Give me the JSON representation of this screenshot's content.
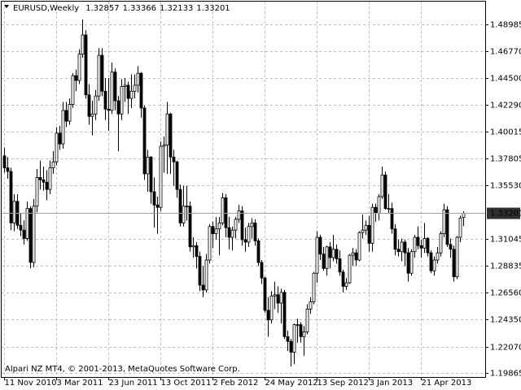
{
  "chart_data": {
    "type": "candlestick",
    "symbol": "EURUSD,Weekly",
    "footer": "Alpari NZ MT4, © 2001-2013, MetaQuotes Software Corp.",
    "bull_color": "#ffffff",
    "bear_color": "#000000",
    "grid": true,
    "ylim": [
      1.1953,
      1.5102
    ],
    "yticks": [
      1.48985,
      {
        "value": 1.4677,
        "label": "1.46770"
      },
      {
        "value": 1.445,
        "label": "1.44500"
      },
      {
        "value": 1.4229,
        "label": "1.42290"
      },
      1.40015,
      1.37805,
      {
        "value": 1.3553,
        "label": "1.35530"
      },
      1.31045,
      1.28835,
      {
        "value": 1.2656,
        "label": "1.26560"
      },
      {
        "value": 1.2435,
        "label": "1.24350"
      },
      {
        "value": 1.2207,
        "label": "1.22070"
      },
      1.19865
    ],
    "categories": [
      "11 Nov 2010",
      null,
      null,
      null,
      null,
      null,
      null,
      null,
      null,
      null,
      null,
      null,
      null,
      null,
      null,
      null,
      "3 Mar 2011",
      null,
      null,
      null,
      null,
      null,
      null,
      null,
      null,
      null,
      null,
      null,
      null,
      null,
      null,
      null,
      "23 Jun 2011",
      null,
      null,
      null,
      null,
      null,
      null,
      null,
      null,
      null,
      null,
      null,
      null,
      null,
      null,
      null,
      "13 Oct 2011",
      null,
      null,
      null,
      null,
      null,
      null,
      null,
      null,
      null,
      null,
      null,
      null,
      null,
      null,
      null,
      "2 Feb 2012",
      null,
      null,
      null,
      null,
      null,
      null,
      null,
      null,
      null,
      null,
      null,
      null,
      null,
      null,
      null,
      "24 May 2012",
      null,
      null,
      null,
      null,
      null,
      null,
      null,
      null,
      null,
      null,
      null,
      null,
      null,
      null,
      null,
      "13 Sep 2012",
      null,
      null,
      null,
      null,
      null,
      null,
      null,
      null,
      null,
      null,
      null,
      null,
      null,
      null,
      null,
      "3 Jan 2013",
      null,
      null,
      null,
      null,
      null,
      null,
      null,
      null,
      null,
      null,
      null,
      null,
      null,
      null,
      null,
      "21 Apr 2013",
      null,
      null,
      null,
      null,
      null,
      null,
      null,
      null,
      null,
      null,
      null,
      null,
      null
    ],
    "ohlc": [
      [
        1.38,
        1.387,
        1.366,
        1.37
      ],
      [
        1.37,
        1.379,
        1.361,
        1.367
      ],
      [
        1.367,
        1.37,
        1.318,
        1.324
      ],
      [
        1.324,
        1.348,
        1.317,
        1.342
      ],
      [
        1.342,
        1.348,
        1.319,
        1.322
      ],
      [
        1.322,
        1.332,
        1.313,
        1.318
      ],
      [
        1.318,
        1.326,
        1.306,
        1.311
      ],
      [
        1.311,
        1.342,
        1.309,
        1.336
      ],
      [
        1.336,
        1.338,
        1.286,
        1.291
      ],
      [
        1.291,
        1.344,
        1.287,
        1.338
      ],
      [
        1.338,
        1.369,
        1.333,
        1.362
      ],
      [
        1.362,
        1.376,
        1.352,
        1.36
      ],
      [
        1.36,
        1.371,
        1.351,
        1.358
      ],
      [
        1.358,
        1.368,
        1.343,
        1.352
      ],
      [
        1.352,
        1.376,
        1.348,
        1.37
      ],
      [
        1.37,
        1.384,
        1.365,
        1.375
      ],
      [
        1.375,
        1.404,
        1.372,
        1.399
      ],
      [
        1.399,
        1.405,
        1.385,
        1.39
      ],
      [
        1.39,
        1.425,
        1.386,
        1.418
      ],
      [
        1.418,
        1.425,
        1.404,
        1.409
      ],
      [
        1.409,
        1.428,
        1.406,
        1.423
      ],
      [
        1.423,
        1.449,
        1.42,
        1.447
      ],
      [
        1.447,
        1.452,
        1.434,
        1.443
      ],
      [
        1.443,
        1.469,
        1.44,
        1.465
      ],
      [
        1.465,
        1.494,
        1.462,
        1.481
      ],
      [
        1.481,
        1.485,
        1.428,
        1.431
      ],
      [
        1.431,
        1.44,
        1.406,
        1.413
      ],
      [
        1.413,
        1.426,
        1.397,
        1.415
      ],
      [
        1.415,
        1.435,
        1.41,
        1.43
      ],
      [
        1.43,
        1.47,
        1.426,
        1.464
      ],
      [
        1.464,
        1.47,
        1.43,
        1.434
      ],
      [
        1.434,
        1.445,
        1.41,
        1.419
      ],
      [
        1.419,
        1.445,
        1.401,
        1.418
      ],
      [
        1.418,
        1.458,
        1.415,
        1.45
      ],
      [
        1.45,
        1.453,
        1.418,
        1.426
      ],
      [
        1.426,
        1.43,
        1.384,
        1.415
      ],
      [
        1.415,
        1.444,
        1.41,
        1.438
      ],
      [
        1.438,
        1.445,
        1.425,
        1.439
      ],
      [
        1.439,
        1.442,
        1.415,
        1.428
      ],
      [
        1.428,
        1.448,
        1.42,
        1.434
      ],
      [
        1.434,
        1.448,
        1.428,
        1.439
      ],
      [
        1.439,
        1.455,
        1.433,
        1.449
      ],
      [
        1.449,
        1.45,
        1.412,
        1.42
      ],
      [
        1.42,
        1.422,
        1.36,
        1.365
      ],
      [
        1.365,
        1.385,
        1.35,
        1.379
      ],
      [
        1.379,
        1.38,
        1.34,
        1.35
      ],
      [
        1.35,
        1.362,
        1.32,
        1.339
      ],
      [
        1.339,
        1.346,
        1.315,
        1.337
      ],
      [
        1.337,
        1.392,
        1.334,
        1.388
      ],
      [
        1.388,
        1.396,
        1.366,
        1.389
      ],
      [
        1.389,
        1.425,
        1.365,
        1.415
      ],
      [
        1.415,
        1.416,
        1.365,
        1.379
      ],
      [
        1.379,
        1.385,
        1.355,
        1.375
      ],
      [
        1.375,
        1.376,
        1.345,
        1.352
      ],
      [
        1.352,
        1.356,
        1.321,
        1.324
      ],
      [
        1.324,
        1.355,
        1.321,
        1.338
      ],
      [
        1.338,
        1.355,
        1.326,
        1.338
      ],
      [
        1.338,
        1.342,
        1.3,
        1.304
      ],
      [
        1.304,
        1.312,
        1.295,
        1.305
      ],
      [
        1.305,
        1.308,
        1.286,
        1.296
      ],
      [
        1.296,
        1.3,
        1.267,
        1.272
      ],
      [
        1.272,
        1.288,
        1.262,
        1.268
      ],
      [
        1.268,
        1.298,
        1.266,
        1.293
      ],
      [
        1.293,
        1.323,
        1.29,
        1.321
      ],
      [
        1.321,
        1.325,
        1.303,
        1.315
      ],
      [
        1.315,
        1.329,
        1.31,
        1.319
      ],
      [
        1.319,
        1.329,
        1.297,
        1.324
      ],
      [
        1.324,
        1.349,
        1.322,
        1.345
      ],
      [
        1.345,
        1.348,
        1.312,
        1.32
      ],
      [
        1.32,
        1.329,
        1.302,
        1.312
      ],
      [
        1.312,
        1.321,
        1.301,
        1.318
      ],
      [
        1.318,
        1.329,
        1.311,
        1.327
      ],
      [
        1.327,
        1.339,
        1.324,
        1.334
      ],
      [
        1.334,
        1.338,
        1.305,
        1.31
      ],
      [
        1.31,
        1.32,
        1.3,
        1.308
      ],
      [
        1.308,
        1.324,
        1.304,
        1.321
      ],
      [
        1.321,
        1.328,
        1.311,
        1.324
      ],
      [
        1.324,
        1.327,
        1.305,
        1.309
      ],
      [
        1.309,
        1.311,
        1.288,
        1.291
      ],
      [
        1.291,
        1.293,
        1.273,
        1.278
      ],
      [
        1.278,
        1.279,
        1.249,
        1.251
      ],
      [
        1.251,
        1.262,
        1.229,
        1.243
      ],
      [
        1.243,
        1.267,
        1.24,
        1.263
      ],
      [
        1.263,
        1.275,
        1.252,
        1.264
      ],
      [
        1.264,
        1.271,
        1.249,
        1.257
      ],
      [
        1.257,
        1.269,
        1.24,
        1.266
      ],
      [
        1.266,
        1.268,
        1.227,
        1.229
      ],
      [
        1.229,
        1.234,
        1.217,
        1.225
      ],
      [
        1.225,
        1.227,
        1.204,
        1.216
      ],
      [
        1.216,
        1.24,
        1.206,
        1.239
      ],
      [
        1.239,
        1.244,
        1.224,
        1.239
      ],
      [
        1.239,
        1.241,
        1.224,
        1.229
      ],
      [
        1.229,
        1.238,
        1.213,
        1.233
      ],
      [
        1.233,
        1.256,
        1.231,
        1.252
      ],
      [
        1.252,
        1.262,
        1.248,
        1.258
      ],
      [
        1.258,
        1.283,
        1.256,
        1.282
      ],
      [
        1.282,
        1.317,
        1.274,
        1.312
      ],
      [
        1.312,
        1.314,
        1.293,
        1.298
      ],
      [
        1.298,
        1.304,
        1.284,
        1.286
      ],
      [
        1.286,
        1.305,
        1.28,
        1.304
      ],
      [
        1.304,
        1.308,
        1.286,
        1.295
      ],
      [
        1.295,
        1.314,
        1.292,
        1.302
      ],
      [
        1.302,
        1.306,
        1.29,
        1.294
      ],
      [
        1.294,
        1.301,
        1.28,
        1.283
      ],
      [
        1.283,
        1.285,
        1.266,
        1.271
      ],
      [
        1.271,
        1.278,
        1.268,
        1.274
      ],
      [
        1.274,
        1.298,
        1.273,
        1.297
      ],
      [
        1.297,
        1.303,
        1.288,
        1.299
      ],
      [
        1.299,
        1.302,
        1.288,
        1.293
      ],
      [
        1.293,
        1.317,
        1.292,
        1.316
      ],
      [
        1.316,
        1.331,
        1.311,
        1.318
      ],
      [
        1.318,
        1.326,
        1.314,
        1.322
      ],
      [
        1.322,
        1.33,
        1.3,
        1.307
      ],
      [
        1.307,
        1.34,
        1.3,
        1.337
      ],
      [
        1.337,
        1.34,
        1.325,
        1.332
      ],
      [
        1.332,
        1.348,
        1.326,
        1.346
      ],
      [
        1.346,
        1.371,
        1.344,
        1.364
      ],
      [
        1.364,
        1.367,
        1.335,
        1.336
      ],
      [
        1.336,
        1.348,
        1.332,
        1.336
      ],
      [
        1.336,
        1.341,
        1.315,
        1.319
      ],
      [
        1.319,
        1.323,
        1.297,
        1.302
      ],
      [
        1.302,
        1.31,
        1.296,
        1.3
      ],
      [
        1.3,
        1.311,
        1.292,
        1.308
      ],
      [
        1.308,
        1.31,
        1.288,
        1.299
      ],
      [
        1.299,
        1.303,
        1.275,
        1.282
      ],
      [
        1.282,
        1.302,
        1.28,
        1.3
      ],
      [
        1.3,
        1.314,
        1.295,
        1.312
      ],
      [
        1.312,
        1.321,
        1.302,
        1.305
      ],
      [
        1.305,
        1.31,
        1.295,
        1.303
      ],
      [
        1.303,
        1.324,
        1.299,
        1.311
      ],
      [
        1.311,
        1.312,
        1.296,
        1.299
      ],
      [
        1.299,
        1.301,
        1.282,
        1.284
      ],
      [
        1.284,
        1.296,
        1.28,
        1.293
      ],
      [
        1.293,
        1.304,
        1.29,
        1.299
      ],
      [
        1.299,
        1.317,
        1.296,
        1.315
      ],
      [
        1.315,
        1.34,
        1.312,
        1.335
      ],
      [
        1.335,
        1.338,
        1.304,
        1.306
      ],
      [
        1.306,
        1.311,
        1.295,
        1.302
      ],
      [
        1.302,
        1.305,
        1.275,
        1.279
      ],
      [
        1.279,
        1.313,
        1.277,
        1.312
      ],
      [
        1.312,
        1.33,
        1.308,
        1.328
      ],
      [
        1.32857,
        1.33366,
        1.32133,
        1.33201
      ]
    ]
  }
}
